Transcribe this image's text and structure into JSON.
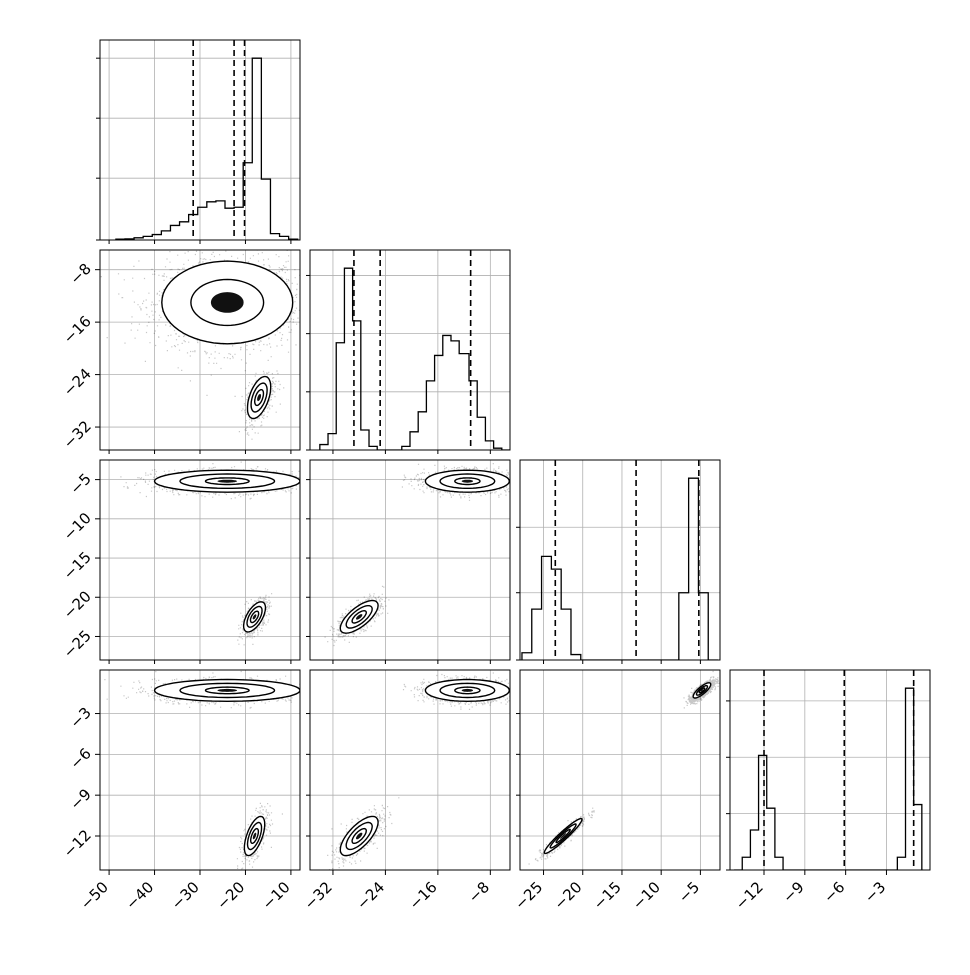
{
  "chart_data": {
    "type": "corner",
    "variables": [
      {
        "ticks": [
          -50,
          -40,
          -30,
          -20,
          -10
        ],
        "tick_labels": [
          "−50",
          "−40",
          "−30",
          "−20",
          "−10"
        ],
        "hist_bins": [
          -48.5,
          -46.5,
          -44.5,
          -42.5,
          -40.5,
          -38.5,
          -36.5,
          -34.5,
          -32.5,
          -30.5,
          -28.5,
          -26.5,
          -24.5,
          -22.5,
          -20.5,
          -18.5,
          -16.5,
          -14.5,
          -12.5,
          -10.5,
          -8.5
        ],
        "hist_values": [
          0.5,
          0.6,
          1.2,
          2.0,
          3.0,
          5.0,
          8.0,
          10.0,
          14.0,
          18.0,
          21.0,
          21.5,
          17.5,
          18.0,
          42.5,
          100.0,
          33.5,
          3.5,
          2.0,
          0.5
        ],
        "hist_max": 110,
        "hist_gridlines": [
          0,
          34,
          67,
          100
        ],
        "quantiles": [
          -31.5,
          -22.5,
          -20.2
        ]
      },
      {
        "ticks": [
          -32,
          -24,
          -16,
          -8
        ],
        "tick_labels": [
          "−32",
          "−24",
          "−16",
          "−8"
        ],
        "hist_bins": [
          -34.0,
          -32.75,
          -31.5,
          -30.25,
          -29.0,
          -27.75,
          -26.5,
          -25.25,
          -24.0,
          -22.75,
          -21.5,
          -20.25,
          -19.0,
          -17.75,
          -16.5,
          -15.25,
          -14.0,
          -12.75,
          -11.25,
          -10.0,
          -8.75,
          -7.5,
          -6.25,
          -5.0
        ],
        "hist_values": [
          3,
          9,
          59,
          100,
          71,
          11,
          2,
          0,
          0,
          0,
          2,
          10,
          21,
          38,
          52,
          63,
          60,
          53,
          38,
          18,
          5,
          1,
          0
        ],
        "hist_max": 110,
        "hist_gridlines": [
          0,
          32,
          64,
          96
        ],
        "quantiles": [
          -28.8,
          -24.8,
          -11.0
        ]
      },
      {
        "ticks": [
          -25,
          -20,
          -15,
          -10,
          -5
        ],
        "tick_labels": [
          "−25",
          "−20",
          "−15",
          "−10",
          "−5"
        ],
        "hist_bins": [
          -27.75,
          -26.5,
          -25.25,
          -24.0,
          -22.75,
          -21.5,
          -20.25,
          -19.0,
          -17.75,
          -16.5,
          -15.25,
          -14.0,
          -12.75,
          -11.5,
          -10.25,
          -9.0,
          -7.75,
          -6.5,
          -5.25,
          -4.0,
          -2.75
        ],
        "hist_values": [
          4,
          28,
          57,
          50,
          28,
          3,
          0,
          0,
          0,
          0,
          0,
          0,
          0,
          0,
          0,
          0,
          37,
          100,
          37,
          0
        ],
        "hist_max": 110,
        "hist_gridlines": [
          0,
          37,
          73
        ],
        "quantiles": [
          -23.5,
          -13.2,
          -5.2
        ]
      },
      {
        "ticks": [
          -12,
          -9,
          -6,
          -3
        ],
        "tick_labels": [
          "−12",
          "−9",
          "−6",
          "−3"
        ],
        "hist_bins": [
          -14.2,
          -13.6,
          -13.0,
          -12.4,
          -11.8,
          -11.2,
          -10.6,
          -10.0,
          -9.4,
          -8.8,
          -8.2,
          -7.6,
          -7.0,
          -6.4,
          -5.8,
          -5.2,
          -4.6,
          -4.0,
          -3.4,
          -2.8,
          -2.2,
          -1.6,
          -1.0,
          -0.4
        ],
        "hist_values": [
          0,
          7,
          22,
          63,
          34,
          7,
          0,
          0,
          0,
          0,
          0,
          0,
          0,
          0,
          0,
          0,
          0,
          0,
          0,
          0,
          7,
          100,
          36
        ],
        "hist_max": 110,
        "hist_gridlines": [
          0,
          31,
          62,
          93
        ],
        "quantiles": [
          -12.0,
          -6.1,
          -1.0
        ]
      }
    ],
    "pairs": [
      {
        "row": 1,
        "col": 0,
        "modes": [
          {
            "cx": -24.0,
            "cy": -13.0,
            "sx": 8.0,
            "sy": 3.5,
            "rho": 0.0,
            "n": 1700,
            "levels": [
              1.0,
              1.8
            ]
          },
          {
            "cx": -17.0,
            "cy": -27.5,
            "sx": 1.6,
            "sy": 2.0,
            "rho": 0.5,
            "n": 500,
            "levels": [
              0.6,
              1.1,
              1.6
            ]
          }
        ]
      },
      {
        "row": 2,
        "col": 0,
        "modes": [
          {
            "cx": -24.0,
            "cy": -5.2,
            "sx": 8.0,
            "sy": 0.7,
            "rho": 0.0,
            "n": 1700,
            "levels": [
              0.6,
              1.3,
              2.0
            ]
          },
          {
            "cx": -18.0,
            "cy": -22.5,
            "sx": 1.5,
            "sy": 1.2,
            "rho": 0.6,
            "n": 500,
            "levels": [
              0.6,
              1.1,
              1.6
            ]
          }
        ]
      },
      {
        "row": 2,
        "col": 1,
        "modes": [
          {
            "cx": -11.5,
            "cy": -5.2,
            "sx": 3.2,
            "sy": 0.7,
            "rho": 0.0,
            "n": 1700,
            "levels": [
              0.6,
              1.3,
              2.0
            ]
          },
          {
            "cx": -28.0,
            "cy": -22.5,
            "sx": 1.8,
            "sy": 1.3,
            "rho": 0.7,
            "n": 500,
            "levels": [
              0.6,
              1.1,
              1.6
            ]
          }
        ]
      },
      {
        "row": 3,
        "col": 0,
        "modes": [
          {
            "cx": -24.0,
            "cy": -1.3,
            "sx": 8.0,
            "sy": 0.4,
            "rho": 0.0,
            "n": 1700,
            "levels": [
              0.6,
              1.3,
              2.0
            ]
          },
          {
            "cx": -18.0,
            "cy": -12.0,
            "sx": 1.4,
            "sy": 0.9,
            "rho": 0.6,
            "n": 500,
            "levels": [
              0.6,
              1.1,
              1.6
            ]
          }
        ]
      },
      {
        "row": 3,
        "col": 1,
        "modes": [
          {
            "cx": -11.5,
            "cy": -1.3,
            "sx": 3.2,
            "sy": 0.4,
            "rho": 0.0,
            "n": 1700,
            "levels": [
              0.6,
              1.3,
              2.0
            ]
          },
          {
            "cx": -28.0,
            "cy": -12.0,
            "sx": 1.8,
            "sy": 0.9,
            "rho": 0.7,
            "n": 500,
            "levels": [
              0.6,
              1.1,
              1.6
            ]
          }
        ]
      },
      {
        "row": 3,
        "col": 2,
        "modes": [
          {
            "cx": -4.8,
            "cy": -1.3,
            "sx": 0.7,
            "sy": 0.35,
            "rho": 0.8,
            "n": 1700,
            "levels": [
              0.5,
              1.0,
              1.6
            ]
          },
          {
            "cx": -22.5,
            "cy": -12.0,
            "sx": 1.5,
            "sy": 0.8,
            "rho": 0.95,
            "n": 500,
            "levels": [
              0.6,
              1.1,
              1.6
            ]
          }
        ]
      }
    ],
    "grid": true,
    "title": "",
    "xlabel": "",
    "ylabel": ""
  }
}
